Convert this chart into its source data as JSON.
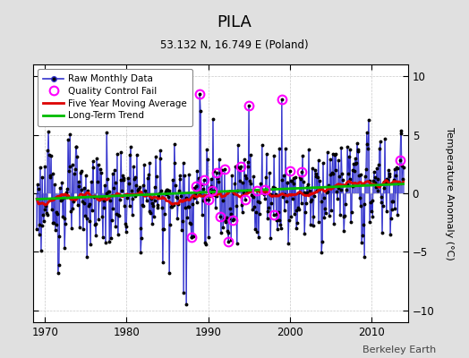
{
  "title": "PILA",
  "subtitle": "53.132 N, 16.749 E (Poland)",
  "ylabel": "Temperature Anomaly (°C)",
  "xlabel_credit": "Berkeley Earth",
  "ylim": [
    -11,
    11
  ],
  "xlim": [
    1968.5,
    2014.5
  ],
  "yticks": [
    -10,
    -5,
    0,
    5,
    10
  ],
  "xticks": [
    1970,
    1980,
    1990,
    2000,
    2010
  ],
  "raw_color": "#3333cc",
  "raw_stem_color": "#6666dd",
  "moving_avg_color": "#dd0000",
  "trend_color": "#00bb00",
  "qc_fail_color": "#ff00ff",
  "background_color": "#e0e0e0",
  "plot_bg_color": "#ffffff",
  "grid_color": "#bbbbbb",
  "legend_entries": [
    "Raw Monthly Data",
    "Quality Control Fail",
    "Five Year Moving Average",
    "Long-Term Trend"
  ]
}
